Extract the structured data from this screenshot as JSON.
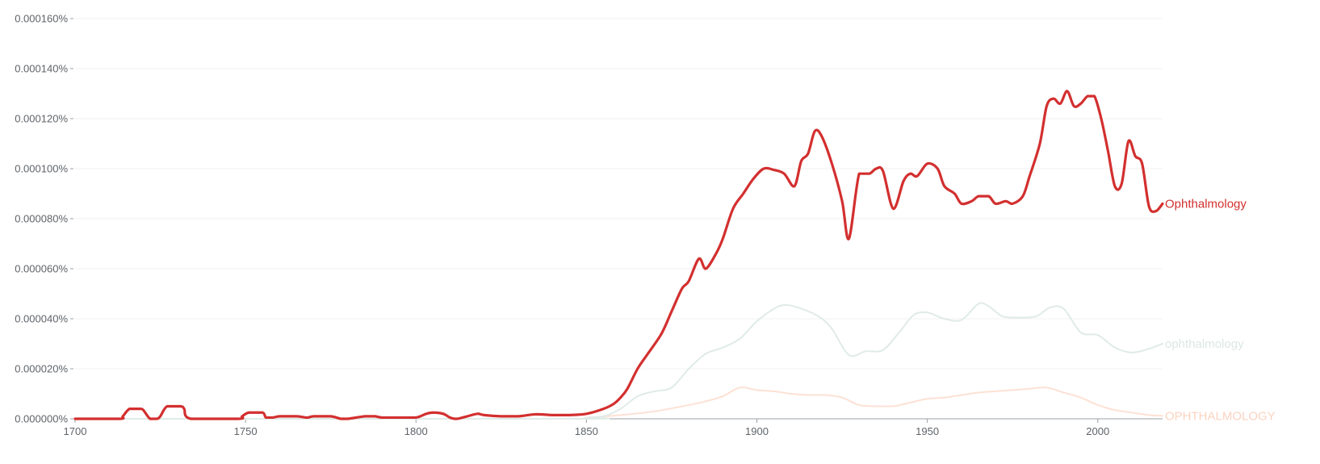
{
  "chart_data": {
    "type": "line",
    "title": "",
    "xlabel": "",
    "ylabel": "",
    "xlim": [
      1700,
      2019
    ],
    "ylim": [
      0,
      0.00016
    ],
    "grid": true,
    "legend": "end-of-line labels",
    "y_ticks": [
      {
        "value": 0,
        "label": "0.000000%"
      },
      {
        "value": 2e-05,
        "label": "0.000020%"
      },
      {
        "value": 4e-05,
        "label": "0.000040%"
      },
      {
        "value": 6e-05,
        "label": "0.000060%"
      },
      {
        "value": 8e-05,
        "label": "0.000080%"
      },
      {
        "value": 0.0001,
        "label": "0.000100%"
      },
      {
        "value": 0.00012,
        "label": "0.000120%"
      },
      {
        "value": 0.00014,
        "label": "0.000140%"
      },
      {
        "value": 0.00016,
        "label": "0.000160%"
      }
    ],
    "x_ticks": [
      {
        "value": 1700,
        "label": "1700"
      },
      {
        "value": 1750,
        "label": "1750"
      },
      {
        "value": 1800,
        "label": "1800"
      },
      {
        "value": 1850,
        "label": "1850"
      },
      {
        "value": 1900,
        "label": "1900"
      },
      {
        "value": 1950,
        "label": "1950"
      },
      {
        "value": 2000,
        "label": "2000"
      }
    ],
    "series": [
      {
        "name": "OPHTHALMOLOGY",
        "color": "#fde1d4",
        "width": 2,
        "label_color": "#fbd3c1",
        "x": [
          1700,
          1840,
          1850,
          1860,
          1870,
          1880,
          1885,
          1890,
          1895,
          1900,
          1905,
          1910,
          1915,
          1920,
          1925,
          1930,
          1935,
          1940,
          1945,
          1950,
          1955,
          1960,
          1965,
          1970,
          1975,
          1980,
          1985,
          1990,
          1995,
          2000,
          2005,
          2010,
          2015,
          2019
        ],
        "y": [
          0,
          0,
          5e-07,
          1.5e-06,
          3e-06,
          5.5e-06,
          7e-06,
          9e-06,
          1.25e-05,
          1.15e-05,
          1.1e-05,
          1e-05,
          9.5e-06,
          9.5e-06,
          8.5e-06,
          5.5e-06,
          5e-06,
          5e-06,
          6.5e-06,
          8e-06,
          8.5e-06,
          9.5e-06,
          1.05e-05,
          1.1e-05,
          1.15e-05,
          1.2e-05,
          1.25e-05,
          1.05e-05,
          8.5e-06,
          5.5e-06,
          3.5e-06,
          2.5e-06,
          1.5e-06,
          1.2e-06
        ]
      },
      {
        "name": "ophthalmology",
        "color": "#e0ebe8",
        "width": 2,
        "label_color": "#dce8e5",
        "x": [
          1700,
          1845,
          1850,
          1855,
          1860,
          1865,
          1870,
          1875,
          1880,
          1885,
          1890,
          1895,
          1900,
          1905,
          1908,
          1912,
          1918,
          1922,
          1927,
          1932,
          1937,
          1942,
          1946,
          1950,
          1955,
          1960,
          1965,
          1968,
          1972,
          1977,
          1982,
          1986,
          1990,
          1995,
          2000,
          2005,
          2010,
          2015,
          2019
        ],
        "y": [
          0,
          0,
          5e-07,
          1e-06,
          4e-06,
          9e-06,
          1.1e-05,
          1.25e-05,
          2e-05,
          2.6e-05,
          2.85e-05,
          3.2e-05,
          3.9e-05,
          4.4e-05,
          4.55e-05,
          4.45e-05,
          4.1e-05,
          3.6e-05,
          2.55e-05,
          2.7e-05,
          2.75e-05,
          3.5e-05,
          4.15e-05,
          4.25e-05,
          4e-05,
          3.95e-05,
          4.6e-05,
          4.5e-05,
          4.1e-05,
          4.05e-05,
          4.1e-05,
          4.45e-05,
          4.4e-05,
          3.45e-05,
          3.35e-05,
          2.85e-05,
          2.65e-05,
          2.8e-05,
          3e-05
        ]
      },
      {
        "name": "Ophthalmology",
        "color": "#d32f2f",
        "width": 3.2,
        "label_color": "#d32f2f",
        "x": [
          1700,
          1713,
          1714,
          1716,
          1719,
          1720,
          1722,
          1724,
          1725,
          1727,
          1731,
          1732,
          1734,
          1748,
          1749,
          1751,
          1755,
          1756,
          1758,
          1760,
          1765,
          1768,
          1770,
          1775,
          1778,
          1780,
          1785,
          1788,
          1790,
          1795,
          1800,
          1803,
          1805,
          1808,
          1810,
          1812,
          1815,
          1818,
          1820,
          1825,
          1830,
          1835,
          1840,
          1845,
          1850,
          1855,
          1858,
          1860,
          1862,
          1865,
          1868,
          1872,
          1875,
          1878,
          1880,
          1883,
          1885,
          1888,
          1890,
          1893,
          1896,
          1899,
          1902,
          1905,
          1908,
          1911,
          1913,
          1915,
          1917,
          1919,
          1922,
          1925,
          1927,
          1930,
          1933,
          1935,
          1937,
          1940,
          1943,
          1945,
          1947,
          1950,
          1953,
          1955,
          1958,
          1960,
          1963,
          1965,
          1968,
          1970,
          1973,
          1975,
          1978,
          1980,
          1983,
          1985,
          1987,
          1989,
          1991,
          1993,
          1995,
          1997,
          1999,
          2001,
          2003,
          2005,
          2007,
          2009,
          2011,
          2013,
          2015,
          2017,
          2019
        ],
        "y": [
          0,
          0,
          1e-06,
          4e-06,
          4e-06,
          3.5e-06,
          0,
          0,
          1e-06,
          5e-06,
          5e-06,
          4e-06,
          0,
          0,
          1e-06,
          2.5e-06,
          2.5e-06,
          5e-07,
          5e-07,
          1e-06,
          1e-06,
          5e-07,
          1e-06,
          1e-06,
          0,
          0,
          1e-06,
          1e-06,
          5e-07,
          5e-07,
          5e-07,
          2e-06,
          2.5e-06,
          2e-06,
          5e-07,
          0,
          1e-06,
          2e-06,
          1.5e-06,
          1e-06,
          1e-06,
          1.8e-06,
          1.5e-06,
          1.5e-06,
          2e-06,
          4e-06,
          6e-06,
          8.5e-06,
          1.2e-05,
          2e-05,
          2.6e-05,
          3.4e-05,
          4.3e-05,
          5.2e-05,
          5.5e-05,
          6.4e-05,
          6e-05,
          6.6e-05,
          7.2e-05,
          8.4e-05,
          9e-05,
          9.6e-05,
          0.0001,
          9.95e-05,
          9.8e-05,
          9.3e-05,
          0.000103,
          0.000106,
          0.000115,
          0.000113,
          0.000102,
          8.7e-05,
          7.2e-05,
          9.8e-05,
          9.8e-05,
          0.0001,
          9.9e-05,
          8.4e-05,
          9.5e-05,
          9.8e-05,
          9.7e-05,
          0.000102,
          0.0001,
          9.3e-05,
          9e-05,
          8.6e-05,
          8.7e-05,
          8.9e-05,
          8.9e-05,
          8.6e-05,
          8.7e-05,
          8.6e-05,
          8.9e-05,
          9.7e-05,
          0.00011,
          0.000125,
          0.000128,
          0.000126,
          0.000131,
          0.000125,
          0.000126,
          0.000129,
          0.000129,
          0.00012,
          0.000107,
          9.3e-05,
          9.4e-05,
          0.000111,
          0.000105,
          0.000102,
          8.5e-05,
          8.3e-05,
          8.6e-05
        ]
      }
    ]
  }
}
